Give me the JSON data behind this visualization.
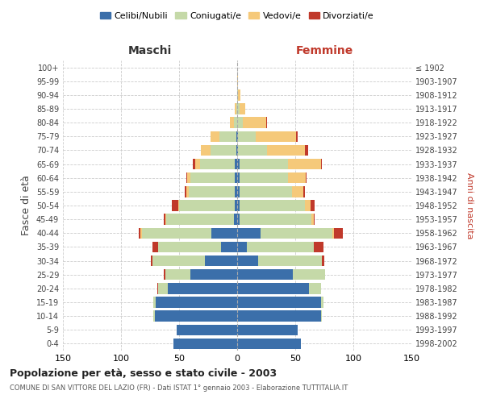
{
  "age_groups": [
    "0-4",
    "5-9",
    "10-14",
    "15-19",
    "20-24",
    "25-29",
    "30-34",
    "35-39",
    "40-44",
    "45-49",
    "50-54",
    "55-59",
    "60-64",
    "65-69",
    "70-74",
    "75-79",
    "80-84",
    "85-89",
    "90-94",
    "95-99",
    "100+"
  ],
  "birth_years": [
    "1998-2002",
    "1993-1997",
    "1988-1992",
    "1983-1987",
    "1978-1982",
    "1973-1977",
    "1968-1972",
    "1963-1967",
    "1958-1962",
    "1953-1957",
    "1948-1952",
    "1943-1947",
    "1938-1942",
    "1933-1937",
    "1928-1932",
    "1923-1927",
    "1918-1922",
    "1913-1917",
    "1908-1912",
    "1903-1907",
    "≤ 1902"
  ],
  "maschi": {
    "celibi": [
      55,
      52,
      71,
      70,
      60,
      40,
      28,
      14,
      22,
      3,
      2,
      2,
      2,
      2,
      1,
      1,
      0,
      0,
      0,
      0,
      0
    ],
    "coniugati": [
      0,
      0,
      1,
      2,
      8,
      22,
      45,
      54,
      60,
      58,
      48,
      40,
      38,
      30,
      22,
      14,
      3,
      1,
      0,
      0,
      0
    ],
    "vedovi": [
      0,
      0,
      0,
      0,
      0,
      0,
      0,
      0,
      1,
      1,
      1,
      2,
      3,
      4,
      8,
      8,
      3,
      1,
      0,
      0,
      0
    ],
    "divorziati": [
      0,
      0,
      0,
      0,
      1,
      1,
      1,
      5,
      2,
      1,
      5,
      1,
      1,
      2,
      0,
      0,
      0,
      0,
      0,
      0,
      0
    ]
  },
  "femmine": {
    "nubili": [
      55,
      52,
      72,
      72,
      62,
      48,
      18,
      8,
      20,
      2,
      2,
      2,
      2,
      2,
      1,
      1,
      0,
      0,
      0,
      0,
      0
    ],
    "coniugate": [
      0,
      0,
      1,
      2,
      10,
      28,
      55,
      58,
      62,
      62,
      56,
      45,
      42,
      42,
      25,
      15,
      5,
      2,
      1,
      0,
      0
    ],
    "vedove": [
      0,
      0,
      0,
      0,
      0,
      0,
      0,
      0,
      1,
      2,
      5,
      10,
      15,
      28,
      32,
      35,
      20,
      5,
      2,
      1,
      0
    ],
    "divorziate": [
      0,
      0,
      0,
      0,
      0,
      0,
      2,
      8,
      8,
      1,
      4,
      1,
      1,
      1,
      3,
      1,
      1,
      0,
      0,
      0,
      0
    ]
  },
  "colors": {
    "celibi": "#3b6faa",
    "coniugati": "#c5d9a8",
    "vedovi": "#f5c97a",
    "divorziati": "#c0392b"
  },
  "title": "Popolazione per età, sesso e stato civile - 2003",
  "subtitle": "COMUNE DI SAN VITTORE DEL LAZIO (FR) - Dati ISTAT 1° gennaio 2003 - Elaborazione TUTTITALIA.IT",
  "xlabel_left": "Maschi",
  "xlabel_right": "Femmine",
  "ylabel_left": "Fasce di età",
  "ylabel_right": "Anni di nascita",
  "xlim": 150,
  "bg_color": "#ffffff",
  "grid_color": "#cccccc"
}
